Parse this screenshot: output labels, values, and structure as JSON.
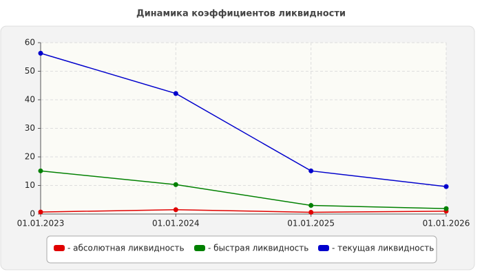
{
  "chart_data": {
    "type": "line",
    "title": "Динамика коэффициентов ликвидности",
    "categories": [
      "01.01.2023",
      "01.01.2024",
      "01.01.2025",
      "01.01.2026"
    ],
    "series": [
      {
        "name": "- абсолютная ликвидность",
        "color": "#e00000",
        "values": [
          0.7,
          1.5,
          0.6,
          1.0
        ]
      },
      {
        "name": "- быстрая ликвидность",
        "color": "#008000",
        "values": [
          15.1,
          10.3,
          3.0,
          1.9
        ]
      },
      {
        "name": "- текущая ликвидность",
        "color": "#0000cc",
        "values": [
          56.3,
          42.2,
          15.1,
          9.6
        ]
      }
    ],
    "ylim": [
      0,
      60
    ],
    "yticks": [
      0,
      10,
      20,
      30,
      40,
      50,
      60
    ],
    "grid": true,
    "legend": "bottom"
  }
}
